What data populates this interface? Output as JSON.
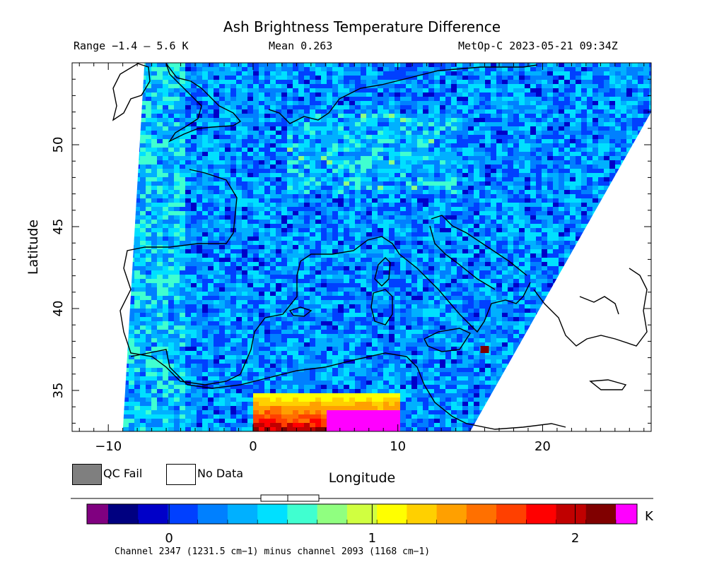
{
  "header": {
    "title": "Ash Brightness Temperature Difference",
    "range": "Range −1.4 – 5.6 K",
    "mean": "Mean 0.263",
    "satellite": "MetOp-C 2023-05-21 09:34Z"
  },
  "legend": {
    "qc_fail": "QC Fail",
    "no_data": "No Data",
    "qc_fail_color": "#7f7f7f",
    "no_data_color": "#ffffff"
  },
  "colorbar": {
    "unit": "K",
    "ticks": [
      {
        "value": 0,
        "label": "0"
      },
      {
        "value": 1,
        "label": "1"
      },
      {
        "value": 2,
        "label": "2"
      }
    ],
    "min": -0.3,
    "max": 2.2,
    "under_color": "#800080",
    "over_color": "#ff00ff",
    "colors": [
      "#000080",
      "#0000c8",
      "#0040ff",
      "#0080ff",
      "#00b0ff",
      "#00e0ff",
      "#40ffd0",
      "#90ff80",
      "#d0ff40",
      "#ffff00",
      "#ffd000",
      "#ffa000",
      "#ff7000",
      "#ff4000",
      "#ff0000",
      "#c00000",
      "#800000"
    ],
    "caption": "Channel 2347 (1231.5 cm−1) minus channel 2093 (1168 cm−1)"
  },
  "chart_data": {
    "type": "heatmap",
    "title": "Ash Brightness Temperature Difference",
    "xlabel": "Longitude",
    "ylabel": "Latitude",
    "xlim": [
      -12.5,
      27.5
    ],
    "ylim": [
      32.5,
      55
    ],
    "xticks": [
      -10,
      0,
      10,
      20
    ],
    "yticks": [
      35,
      40,
      45,
      50
    ],
    "value_range": [
      -1.4,
      5.6
    ],
    "mean": 0.263,
    "units": "K",
    "swath_west_edge": [
      [
        -7.5,
        55
      ],
      [
        -9,
        32.5
      ]
    ],
    "swath_east_edge": [
      [
        27.5,
        52
      ],
      [
        15,
        32.5
      ]
    ],
    "typical_value": 0.263,
    "hotspot": {
      "lon": [
        0,
        10
      ],
      "lat": [
        32.5,
        35
      ],
      "values": [
        1.0,
        2.3
      ]
    },
    "notable_pixel": {
      "lon": 16,
      "lat": 37.5,
      "value": 2.1
    }
  }
}
